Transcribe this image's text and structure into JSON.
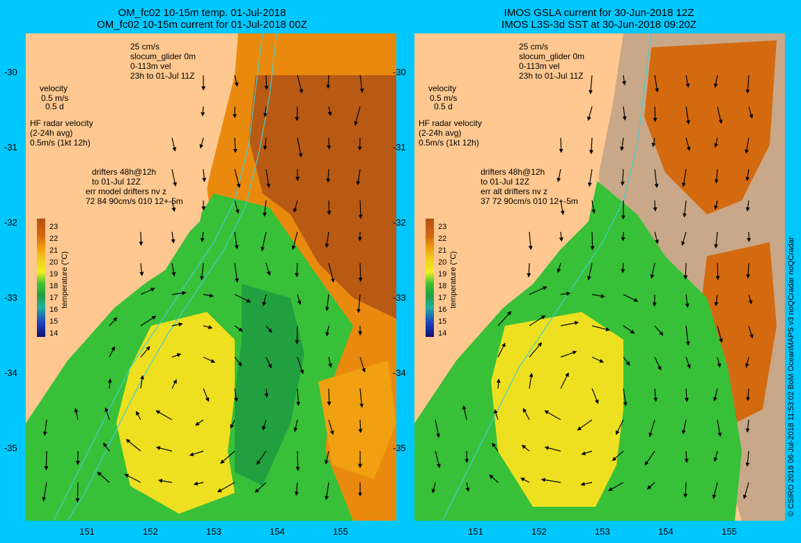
{
  "left": {
    "title1": "OM_fc02 10-15m temp. 01-Jul-2018",
    "title2": "OM_fc02 10-15m current for 01-Jul-2018 00Z",
    "legend": {
      "scale": "25 cm/s",
      "glider": "slocum_glider 0m",
      "vel": "0-113m vel",
      "window": "23h to 01-Jul 11Z",
      "velocity": "velocity",
      "vel_ms": "0.5 m/s",
      "vel_d": "0.5 d",
      "hf1": "HF radar velocity",
      "hf2": "(2-24h avg)",
      "hf3": "0.5m/s (1kt 12h)",
      "dr1": "drifters 48h@12h",
      "dr2": "to 01-Jul 12Z",
      "dr3": "err model drifters nv z",
      "dr4": "72 84 90cm/s 010 12+-5m"
    }
  },
  "right": {
    "title1": "IMOS GSLA current for 30-Jun-2018 12Z",
    "title2": "IMOS L3S-3d SST at 30-Jun-2018 09:20Z",
    "legend": {
      "scale": "25 cm/s",
      "glider": "slocum_glider 0m",
      "vel": "0-113m vel",
      "window": "23h to 01-Jul 11Z",
      "velocity": "velocity",
      "vel_ms": "0.5 m/s",
      "vel_d": "0.5 d",
      "hf1": "HF radar velocity",
      "hf2": "(2-24h avg)",
      "hf3": "0.5m/s (1kt 12h)",
      "dr1": "drifters 48h@12h",
      "dr2": "to 01-Jul 12Z",
      "dr3": "err alt drifters nv z",
      "dr4": "37 72 90cm/s 010 12+-5m"
    }
  },
  "lat_ticks": [
    "-30",
    "-31",
    "-32",
    "-33",
    "-34",
    "-35"
  ],
  "lon_ticks": [
    "151",
    "152",
    "153",
    "154",
    "155"
  ],
  "colorbar": {
    "title": "temperature (°C)",
    "levels": [
      "23",
      "22",
      "21",
      "20",
      "19",
      "18",
      "17",
      "16",
      "15",
      "14"
    ]
  },
  "credit": "© CSIRO 2018   06-Jul-2018 11:53:02 BoM OceanMAPS v3 noQCradar noQCradar",
  "colors": {
    "land": "#ffc890",
    "frame": "#00c8ff",
    "warm": "#d46a10",
    "hot": "#b45a14",
    "mid": "#f0a010",
    "yellow": "#f0e020",
    "green": "#30c030",
    "darkgreen": "#20a040",
    "nodata": "#c8a888",
    "isobath": "#40d0d0",
    "glider": "#ff20ff",
    "radar": "#ff20ff"
  }
}
